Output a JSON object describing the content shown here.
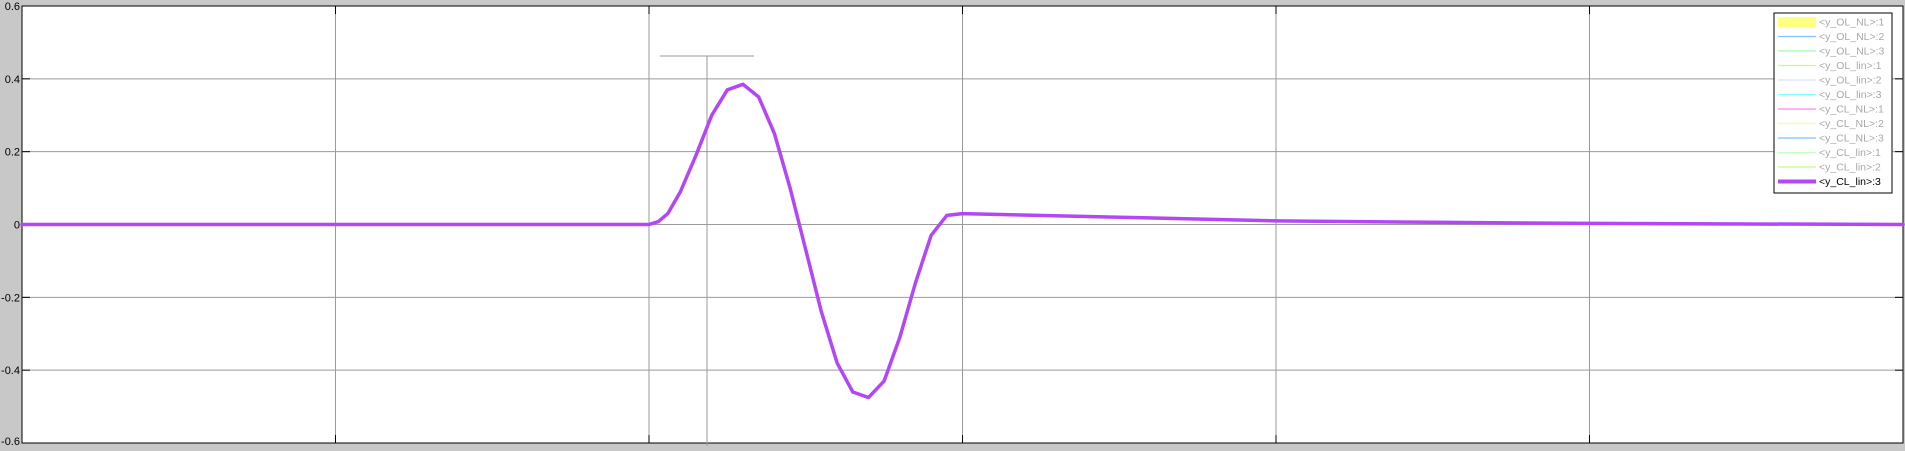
{
  "chart_data": {
    "type": "line",
    "title": "",
    "xlabel": "",
    "ylabel": "",
    "xlim": [
      0,
      6
    ],
    "ylim": [
      -0.6,
      0.6
    ],
    "x_grid": [
      1,
      2,
      3,
      4,
      5
    ],
    "yticks": [
      {
        "value": 0.6,
        "label": "0.6"
      },
      {
        "value": 0.4,
        "label": "0.4"
      },
      {
        "value": 0.2,
        "label": "0.2"
      },
      {
        "value": 0,
        "label": "0"
      },
      {
        "value": -0.2,
        "label": "-0.2"
      },
      {
        "value": -0.4,
        "label": "-0.4"
      },
      {
        "value": -0.6,
        "label": "-0.6"
      }
    ],
    "grid": true,
    "legend_position": "top-right",
    "series": [
      {
        "name": "<y_OL_NL>:1",
        "color": "#ffff80",
        "visible": false
      },
      {
        "name": "<y_OL_NL>:2",
        "color": "#80c0ff",
        "visible": false
      },
      {
        "name": "<y_OL_NL>:3",
        "color": "#a0ffa0",
        "visible": false
      },
      {
        "name": "<y_OL_lin>:1",
        "color": "#c0ff80",
        "visible": false
      },
      {
        "name": "<y_OL_lin>:2",
        "color": "#e0e0ff",
        "visible": false
      },
      {
        "name": "<y_OL_lin>:3",
        "color": "#80ffff",
        "visible": false
      },
      {
        "name": "<y_CL_NL>:1",
        "color": "#ff80ff",
        "visible": false
      },
      {
        "name": "<y_CL_NL>:2",
        "color": "#ffff80",
        "visible": false
      },
      {
        "name": "<y_CL_NL>:3",
        "color": "#80c0ff",
        "visible": false
      },
      {
        "name": "<y_CL_lin>:1",
        "color": "#c0ffc0",
        "visible": false
      },
      {
        "name": "<y_CL_lin>:2",
        "color": "#c0ff80",
        "visible": false
      },
      {
        "name": "<y_CL_lin>:3",
        "color": "#b347f5",
        "visible": true,
        "x": [
          0,
          1,
          2.0,
          2.03,
          2.06,
          2.1,
          2.15,
          2.2,
          2.25,
          2.3,
          2.35,
          2.4,
          2.45,
          2.5,
          2.55,
          2.6,
          2.65,
          2.7,
          2.75,
          2.8,
          2.85,
          2.9,
          2.95,
          3.0,
          3.5,
          4,
          4.5,
          5,
          6
        ],
        "y": [
          0,
          0,
          0.0,
          0.008,
          0.03,
          0.09,
          0.19,
          0.3,
          0.37,
          0.385,
          0.35,
          0.25,
          0.1,
          -0.07,
          -0.24,
          -0.38,
          -0.46,
          -0.475,
          -0.43,
          -0.31,
          -0.16,
          -0.03,
          0.025,
          0.03,
          0.02,
          0.01,
          0.006,
          0.003,
          0.0
        ]
      }
    ]
  }
}
